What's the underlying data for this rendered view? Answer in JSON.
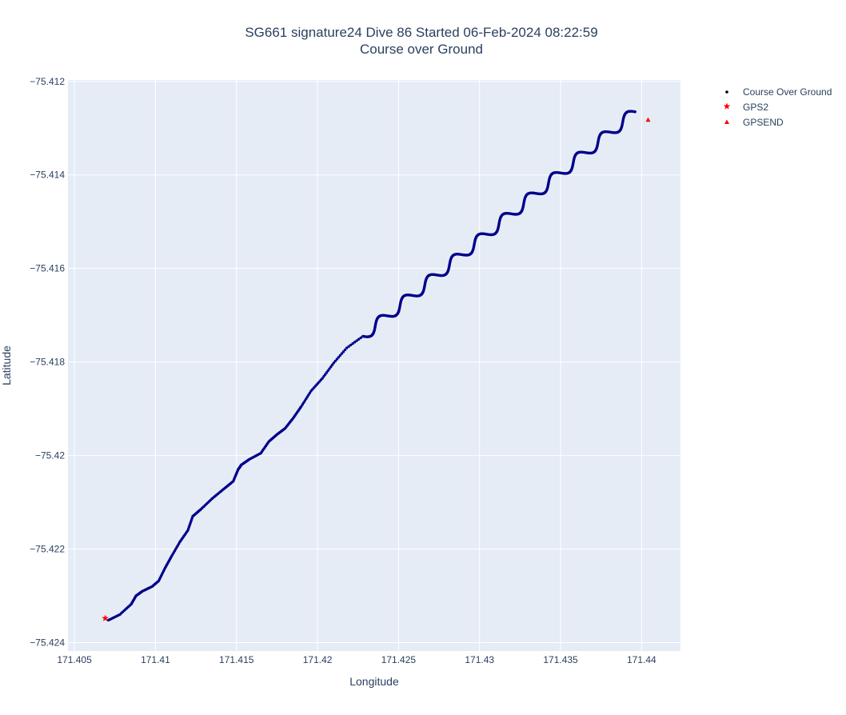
{
  "chart_data": {
    "type": "scatter",
    "title_line1": "SG661 signature24 Dive 86 Started 06-Feb-2024 08:22:59",
    "title_line2": "Course over Ground",
    "xlabel": "Longitude",
    "ylabel": "Latitude",
    "xlim": [
      171.4046,
      171.4424
    ],
    "ylim": [
      -75.42418,
      -75.41197
    ],
    "x_ticks": [
      171.405,
      171.41,
      171.415,
      171.42,
      171.425,
      171.43,
      171.435,
      171.44
    ],
    "x_tick_labels": [
      "171.405",
      "171.41",
      "171.415",
      "171.42",
      "171.425",
      "171.43",
      "171.435",
      "171.44"
    ],
    "y_ticks": [
      -75.412,
      -75.414,
      -75.416,
      -75.418,
      -75.42,
      -75.422,
      -75.424
    ],
    "y_tick_labels": [
      "−75.412",
      "−75.414",
      "−75.416",
      "−75.418",
      "−75.42",
      "−75.422",
      "−75.424"
    ],
    "grid": true,
    "legend_position": "top-right",
    "colors": {
      "plot_bg": "#e5ecf6",
      "grid": "#ffffff",
      "course": "#00008b",
      "gps": "#ff0000",
      "text": "#2a3f5f"
    },
    "series": [
      {
        "name": "Course Over Ground",
        "marker": "dot",
        "color": "#00008b",
        "waypoints": [
          [
            171.4071,
            -75.42352
          ],
          [
            171.4078,
            -75.4234
          ],
          [
            171.4085,
            -75.42318
          ],
          [
            171.4088,
            -75.423
          ],
          [
            171.4092,
            -75.4229
          ],
          [
            171.4098,
            -75.4228
          ],
          [
            171.4102,
            -75.42268
          ],
          [
            171.4106,
            -75.4224
          ],
          [
            171.411,
            -75.42215
          ],
          [
            171.4115,
            -75.42185
          ],
          [
            171.412,
            -75.4216
          ],
          [
            171.4123,
            -75.4213
          ],
          [
            171.4128,
            -75.42115
          ],
          [
            171.4135,
            -75.42092
          ],
          [
            171.4142,
            -75.42072
          ],
          [
            171.4148,
            -75.42055
          ],
          [
            171.4151,
            -75.4203
          ],
          [
            171.4153,
            -75.4202
          ],
          [
            171.4158,
            -75.42008
          ],
          [
            171.4165,
            -75.41995
          ],
          [
            171.417,
            -75.4197
          ],
          [
            171.4175,
            -75.41955
          ],
          [
            171.418,
            -75.41942
          ],
          [
            171.4185,
            -75.4192
          ],
          [
            171.419,
            -75.41895
          ],
          [
            171.4196,
            -75.41862
          ],
          [
            171.4203,
            -75.41835
          ],
          [
            171.421,
            -75.41802
          ],
          [
            171.4218,
            -75.4177
          ],
          [
            171.4228,
            -75.41745
          ]
        ],
        "wiggle_start": [
          171.4228,
          -75.41745
        ],
        "wiggle_end": [
          171.4396,
          -75.41265
        ],
        "wiggle_count": 11,
        "wiggle_amplitude": 0.00048
      },
      {
        "name": "GPS2",
        "marker": "star",
        "color": "#ff0000",
        "x": [
          171.4069
        ],
        "y": [
          -75.42348
        ]
      },
      {
        "name": "GPSEND",
        "marker": "triangle-up",
        "color": "#ff0000",
        "x": [
          171.4404
        ],
        "y": [
          -75.41282
        ]
      }
    ]
  }
}
